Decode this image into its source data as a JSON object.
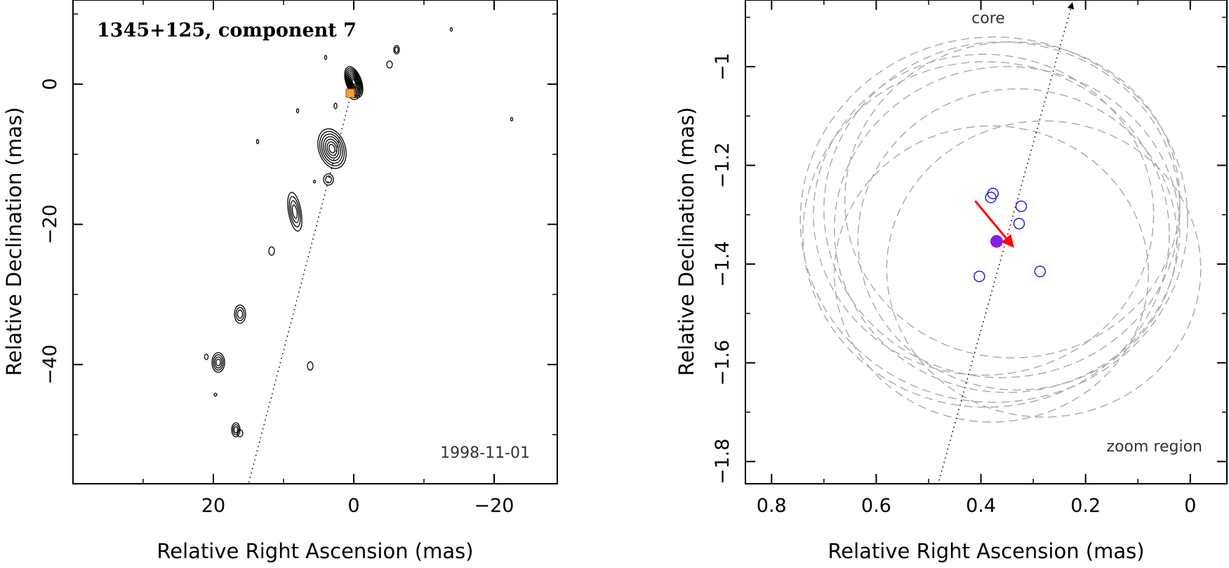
{
  "colors": {
    "frame": "#000000",
    "contour": "#000000",
    "fit_circle": "#a8a8a8",
    "position_marker": "#2020e0",
    "mean_position": "#8a1ce6",
    "motion_vector": "#ff0000"
  },
  "chart_data": [
    {
      "type": "contour",
      "title": "1345+125, component 7",
      "date": "1998-11-01",
      "xlabel": "Relative Right Ascension (mas)",
      "ylabel": "Relative Declination (mas)",
      "xlim": [
        40,
        -29
      ],
      "ylim": [
        -57,
        12
      ],
      "x_ticks": [
        20,
        0,
        -20
      ],
      "x_tick_labels": [
        "20",
        "0",
        "−20"
      ],
      "y_ticks": [
        0,
        -20,
        -40
      ],
      "y_tick_labels": [
        "0",
        "−20",
        "−40"
      ],
      "direction_line": {
        "x": [
          0,
          15
        ],
        "y": [
          0,
          -57
        ]
      },
      "component_marker": {
        "x": 0.5,
        "y": -1.3
      },
      "features": [
        {
          "x": 0,
          "y": 0.3,
          "rx": 1.1,
          "ry": 2.3,
          "rot": -20,
          "levels": 9
        },
        {
          "x": -0.1,
          "y": -1.3,
          "rx": 0.8,
          "ry": 0.9,
          "rot": 0,
          "levels": 3
        },
        {
          "x": 3.1,
          "y": -9.2,
          "rx": 1.9,
          "ry": 2.9,
          "rot": -18,
          "levels": 7
        },
        {
          "x": 3.6,
          "y": -13.6,
          "rx": 0.7,
          "ry": 0.8,
          "rot": 0,
          "levels": 2
        },
        {
          "x": 8.4,
          "y": -18.2,
          "rx": 0.9,
          "ry": 2.8,
          "rot": -10,
          "levels": 4
        },
        {
          "x": 16.2,
          "y": -32.8,
          "rx": 0.8,
          "ry": 1.3,
          "rot": 0,
          "levels": 3
        },
        {
          "x": 19.3,
          "y": -39.7,
          "rx": 0.9,
          "ry": 1.4,
          "rot": 0,
          "levels": 4
        },
        {
          "x": 16.8,
          "y": -49.3,
          "rx": 0.6,
          "ry": 1.0,
          "rot": 0,
          "levels": 3
        },
        {
          "x": 16.2,
          "y": -49.8,
          "rx": 0.4,
          "ry": 0.5,
          "rot": 0,
          "levels": 1
        },
        {
          "x": 11.7,
          "y": -23.8,
          "rx": 0.4,
          "ry": 0.6,
          "rot": 0,
          "levels": 1
        },
        {
          "x": 6.2,
          "y": -40.2,
          "rx": 0.4,
          "ry": 0.6,
          "rot": 0,
          "levels": 1
        },
        {
          "x": -5.1,
          "y": 2.8,
          "rx": 0.4,
          "ry": 0.5,
          "rot": 0,
          "levels": 1
        },
        {
          "x": -6.1,
          "y": 4.9,
          "rx": 0.4,
          "ry": 0.6,
          "rot": 0,
          "levels": 2
        },
        {
          "x": 21,
          "y": -38.9,
          "rx": 0.25,
          "ry": 0.4,
          "rot": 0,
          "levels": 1
        },
        {
          "x": 2.6,
          "y": -3.1,
          "rx": 0.2,
          "ry": 0.4,
          "rot": 0,
          "levels": 1
        },
        {
          "x": 4,
          "y": 3.8,
          "rx": 0.15,
          "ry": 0.3,
          "rot": 0,
          "levels": 1
        },
        {
          "x": 8,
          "y": -3.8,
          "rx": 0.15,
          "ry": 0.3,
          "rot": 0,
          "levels": 1
        },
        {
          "x": 13.7,
          "y": -8.2,
          "rx": 0.15,
          "ry": 0.3,
          "rot": 0,
          "levels": 1
        },
        {
          "x": 5.6,
          "y": -13.9,
          "rx": 0.15,
          "ry": 0.2,
          "rot": 0,
          "levels": 1
        },
        {
          "x": -13.9,
          "y": 7.8,
          "rx": 0.15,
          "ry": 0.25,
          "rot": 0,
          "levels": 1
        },
        {
          "x": -22.5,
          "y": -5,
          "rx": 0.15,
          "ry": 0.25,
          "rot": 0,
          "levels": 1
        },
        {
          "x": 19.7,
          "y": -44.3,
          "rx": 0.2,
          "ry": 0.2,
          "rot": 0,
          "levels": 1
        }
      ]
    },
    {
      "type": "scatter",
      "label": "core",
      "note": "zoom region",
      "xlabel": "Relative Right Ascension (mas)",
      "ylabel": "Relative Declination (mas)",
      "xlim": [
        0.85,
        -0.07
      ],
      "ylim": [
        -1.845,
        -0.865
      ],
      "x_ticks": [
        0.8,
        0.6,
        0.4,
        0.2,
        0
      ],
      "x_tick_labels": [
        "0.8",
        "0.6",
        "0.4",
        "0.2",
        "0"
      ],
      "y_ticks": [
        -1,
        -1.2,
        -1.4,
        -1.6,
        -1.8
      ],
      "y_tick_labels": [
        "−1",
        "−1.2",
        "−1.4",
        "−1.6",
        "−1.8"
      ],
      "direction_line": {
        "x": [
          0.487,
          0.228
        ],
        "y": [
          -1.865,
          -0.865
        ]
      },
      "positions": [
        {
          "x": 0.377,
          "y": -1.257
        },
        {
          "x": 0.381,
          "y": -1.265
        },
        {
          "x": 0.323,
          "y": -1.283
        },
        {
          "x": 0.327,
          "y": -1.318
        },
        {
          "x": 0.287,
          "y": -1.415
        },
        {
          "x": 0.403,
          "y": -1.425
        }
      ],
      "mean_position": {
        "x": 0.37,
        "y": -1.354
      },
      "motion_vector": {
        "from": {
          "x": 0.411,
          "y": -1.272
        },
        "to": {
          "x": 0.338,
          "y": -1.365
        }
      },
      "fit_circles": [
        {
          "x": 0.375,
          "y": -1.31,
          "r": 0.37
        },
        {
          "x": 0.39,
          "y": -1.34,
          "r": 0.35
        },
        {
          "x": 0.36,
          "y": -1.29,
          "r": 0.34
        },
        {
          "x": 0.35,
          "y": -1.33,
          "r": 0.33
        },
        {
          "x": 0.395,
          "y": -1.3,
          "r": 0.325
        },
        {
          "x": 0.34,
          "y": -1.27,
          "r": 0.32
        },
        {
          "x": 0.33,
          "y": -1.35,
          "r": 0.305
        },
        {
          "x": 0.38,
          "y": -1.42,
          "r": 0.3
        },
        {
          "x": 0.28,
          "y": -1.41,
          "r": 0.3
        }
      ]
    }
  ]
}
